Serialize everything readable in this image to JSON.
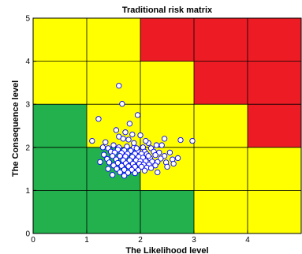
{
  "chart_data": {
    "type": "scatter",
    "title": "Traditional risk matrix",
    "xlabel": "The Likelihood level",
    "ylabel": "The Consequence level",
    "xlim": [
      0,
      5
    ],
    "ylim": [
      0,
      5
    ],
    "xticks": [
      "0",
      "1",
      "2",
      "3",
      "4"
    ],
    "yticks": [
      "0",
      "1",
      "2",
      "3",
      "4",
      "5"
    ],
    "grid": true,
    "colors": {
      "green": "#22b14c",
      "yellow": "#ffff00",
      "red": "#ed1c24",
      "marker_fill": "#ffffff",
      "marker_edge": "#0000ff"
    },
    "cells": [
      [
        "green",
        "green",
        "green",
        "yellow",
        "yellow"
      ],
      [
        "green",
        "green",
        "yellow",
        "yellow",
        "yellow"
      ],
      [
        "green",
        "yellow",
        "yellow",
        "yellow",
        "red"
      ],
      [
        "yellow",
        "yellow",
        "yellow",
        "red",
        "red"
      ],
      [
        "yellow",
        "yellow",
        "red",
        "red",
        "red"
      ]
    ],
    "points": [
      [
        1.6,
        3.43
      ],
      [
        1.66,
        3.01
      ],
      [
        1.95,
        2.75
      ],
      [
        1.22,
        2.66
      ],
      [
        1.8,
        2.55
      ],
      [
        1.55,
        2.4
      ],
      [
        1.72,
        2.35
      ],
      [
        1.85,
        2.3
      ],
      [
        1.6,
        2.25
      ],
      [
        2.0,
        2.28
      ],
      [
        1.68,
        2.2
      ],
      [
        1.78,
        2.18
      ],
      [
        1.1,
        2.15
      ],
      [
        1.35,
        2.12
      ],
      [
        2.45,
        2.2
      ],
      [
        2.75,
        2.17
      ],
      [
        2.97,
        2.15
      ],
      [
        2.15,
        2.1
      ],
      [
        2.3,
        2.05
      ],
      [
        2.4,
        2.05
      ],
      [
        1.5,
        2.05
      ],
      [
        1.6,
        2.0
      ],
      [
        1.75,
        2.02
      ],
      [
        1.88,
        2.0
      ],
      [
        2.05,
        2.0
      ],
      [
        2.2,
        1.98
      ],
      [
        1.4,
        1.98
      ],
      [
        1.58,
        1.95
      ],
      [
        1.7,
        1.93
      ],
      [
        1.82,
        1.92
      ],
      [
        1.95,
        1.92
      ],
      [
        2.08,
        1.9
      ],
      [
        2.25,
        1.9
      ],
      [
        2.35,
        1.88
      ],
      [
        2.55,
        1.88
      ],
      [
        1.45,
        1.9
      ],
      [
        1.52,
        1.88
      ],
      [
        1.65,
        1.87
      ],
      [
        1.76,
        1.85
      ],
      [
        1.9,
        1.85
      ],
      [
        2.02,
        1.85
      ],
      [
        2.12,
        1.84
      ],
      [
        2.28,
        1.82
      ],
      [
        2.45,
        1.8
      ],
      [
        1.32,
        1.83
      ],
      [
        1.48,
        1.8
      ],
      [
        1.62,
        1.8
      ],
      [
        1.72,
        1.79
      ],
      [
        1.85,
        1.78
      ],
      [
        1.97,
        1.78
      ],
      [
        2.05,
        1.76
      ],
      [
        2.18,
        1.75
      ],
      [
        2.38,
        1.74
      ],
      [
        2.6,
        1.72
      ],
      [
        2.7,
        1.75
      ],
      [
        1.38,
        1.73
      ],
      [
        1.55,
        1.72
      ],
      [
        1.68,
        1.7
      ],
      [
        1.8,
        1.7
      ],
      [
        1.92,
        1.7
      ],
      [
        2.0,
        1.68
      ],
      [
        2.1,
        1.68
      ],
      [
        2.22,
        1.67
      ],
      [
        2.32,
        1.66
      ],
      [
        2.48,
        1.65
      ],
      [
        1.25,
        1.66
      ],
      [
        1.42,
        1.65
      ],
      [
        1.58,
        1.64
      ],
      [
        1.73,
        1.63
      ],
      [
        1.86,
        1.62
      ],
      [
        1.98,
        1.62
      ],
      [
        2.06,
        1.6
      ],
      [
        2.16,
        1.6
      ],
      [
        2.28,
        1.58
      ],
      [
        2.62,
        1.62
      ],
      [
        1.5,
        1.58
      ],
      [
        1.65,
        1.57
      ],
      [
        1.78,
        1.56
      ],
      [
        1.9,
        1.55
      ],
      [
        2.02,
        1.55
      ],
      [
        2.12,
        1.53
      ],
      [
        2.2,
        1.52
      ],
      [
        1.4,
        1.5
      ],
      [
        1.56,
        1.5
      ],
      [
        1.7,
        1.48
      ],
      [
        1.84,
        1.48
      ],
      [
        1.96,
        1.47
      ],
      [
        2.08,
        1.46
      ],
      [
        1.62,
        1.42
      ],
      [
        1.77,
        1.41
      ],
      [
        1.9,
        1.4
      ],
      [
        2.32,
        1.42
      ],
      [
        1.48,
        1.36
      ],
      [
        1.7,
        1.34
      ],
      [
        1.88,
        2.1
      ],
      [
        2.1,
        2.15
      ],
      [
        1.3,
        2.0
      ],
      [
        2.5,
        1.55
      ],
      [
        1.93,
        1.98
      ],
      [
        2.15,
        1.8
      ]
    ]
  }
}
